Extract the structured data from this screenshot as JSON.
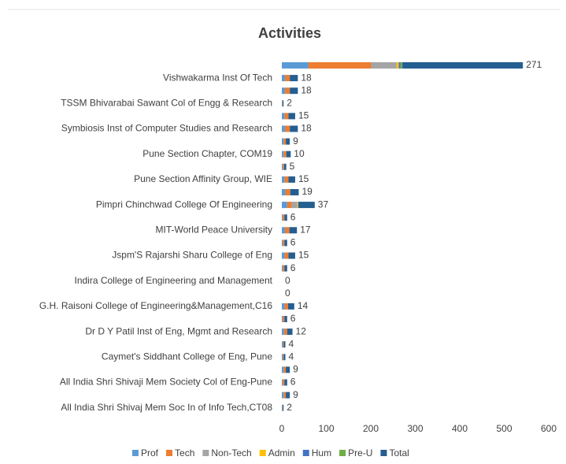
{
  "chart_data": {
    "type": "stacked-bar-horizontal",
    "title": "Activities",
    "categories": [
      null,
      "Vishwakarma Inst Of Tech",
      null,
      "TSSM Bhivarabai Sawant Col of Engg & Research",
      null,
      "Symbiosis Inst of Computer Studies and Research",
      null,
      "Pune Section Chapter, COM19",
      null,
      "Pune Section Affinity Group, WIE",
      null,
      "Pimpri Chinchwad College Of Engineering",
      null,
      "MIT-World Peace University",
      null,
      "Jspm'S Rajarshi Sharu College of Eng",
      null,
      "Indira College of Engineering and Management",
      null,
      "G.H. Raisoni College of Engineering&Management,C16",
      null,
      "Dr D Y Patil Inst of Eng, Mgmt and Research",
      null,
      "Caymet's Siddhant College of Eng, Pune",
      null,
      "All India Shri Shivaji Mem Society Col of Eng-Pune",
      null,
      "All India Shri Shivaj Mem Soc In of Info Tech,CT08"
    ],
    "series": [
      {
        "name": "Prof",
        "color": "#5b9bd5",
        "values": [
          60,
          7,
          7,
          1,
          6,
          7,
          4,
          4,
          2,
          6,
          8,
          12,
          2,
          7,
          2,
          6,
          2,
          0,
          0,
          6,
          2,
          5,
          2,
          2,
          4,
          2,
          4,
          1
        ]
      },
      {
        "name": "Tech",
        "color": "#ed7d31",
        "values": [
          141,
          11,
          11,
          1,
          9,
          11,
          5,
          6,
          3,
          9,
          11,
          10,
          4,
          10,
          4,
          9,
          4,
          0,
          0,
          8,
          4,
          7,
          2,
          2,
          5,
          4,
          5,
          1
        ]
      },
      {
        "name": "Non-Tech",
        "color": "#a5a5a5",
        "values": [
          57,
          0,
          0,
          0,
          0,
          0,
          0,
          0,
          0,
          0,
          0,
          13,
          0,
          0,
          0,
          0,
          0,
          0,
          0,
          0,
          0,
          0,
          0,
          0,
          0,
          0,
          0,
          0
        ]
      },
      {
        "name": "Admin",
        "color": "#ffc000",
        "values": [
          5,
          0,
          0,
          0,
          0,
          0,
          0,
          0,
          0,
          0,
          0,
          2,
          0,
          0,
          0,
          0,
          0,
          0,
          0,
          0,
          0,
          0,
          0,
          0,
          0,
          0,
          0,
          0
        ]
      },
      {
        "name": "Hum",
        "color": "#4472c4",
        "values": [
          4,
          0,
          0,
          0,
          0,
          0,
          0,
          0,
          0,
          0,
          0,
          0,
          0,
          0,
          0,
          0,
          0,
          0,
          0,
          0,
          0,
          0,
          0,
          0,
          0,
          0,
          0,
          0
        ]
      },
      {
        "name": "Pre-U",
        "color": "#70ad47",
        "values": [
          4,
          0,
          0,
          0,
          0,
          0,
          0,
          0,
          0,
          0,
          0,
          0,
          0,
          0,
          0,
          0,
          0,
          0,
          0,
          0,
          0,
          0,
          0,
          0,
          0,
          0,
          0,
          0
        ]
      },
      {
        "name": "Total",
        "color": "#255e91",
        "values": [
          271,
          18,
          18,
          2,
          15,
          18,
          9,
          10,
          5,
          15,
          19,
          37,
          6,
          17,
          6,
          15,
          6,
          0,
          0,
          14,
          6,
          12,
          4,
          4,
          9,
          6,
          9,
          2
        ]
      }
    ],
    "xlim": [
      0,
      600
    ],
    "xticks": [
      0,
      100,
      200,
      300,
      400,
      500,
      600
    ],
    "legend": "bottom"
  }
}
